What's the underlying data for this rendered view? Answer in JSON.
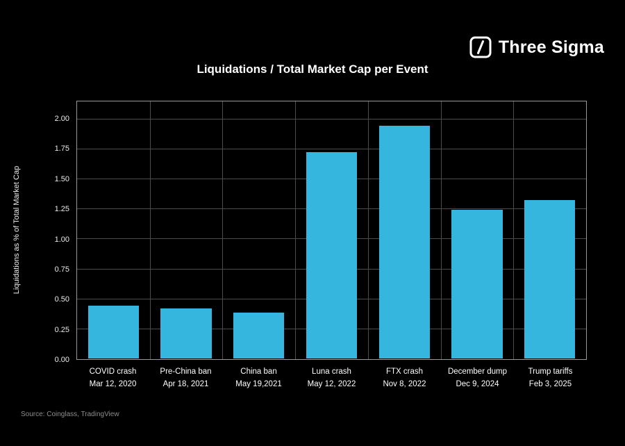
{
  "brand": {
    "name": "Three Sigma"
  },
  "source": "Source: Coinglass, TradingView",
  "chart_data": {
    "type": "bar",
    "title": "Liquidations / Total Market Cap per Event",
    "xlabel": "",
    "ylabel": "Liquidations as % of Total Market Cap",
    "categories": [
      {
        "label": "COVID crash",
        "date": "Mar 12, 2020"
      },
      {
        "label": "Pre-China ban",
        "date": "Apr 18, 2021"
      },
      {
        "label": "China ban",
        "date": "May 19,2021"
      },
      {
        "label": "Luna crash",
        "date": "May 12, 2022"
      },
      {
        "label": "FTX crash",
        "date": "Nov 8, 2022"
      },
      {
        "label": "December dump",
        "date": "Dec 9, 2024"
      },
      {
        "label": "Trump tariffs",
        "date": "Feb 3, 2025"
      }
    ],
    "values": [
      0.44,
      0.42,
      0.38,
      1.72,
      1.94,
      1.24,
      1.32
    ],
    "yticks": [
      "0.00",
      "0.25",
      "0.50",
      "0.75",
      "1.00",
      "1.25",
      "1.50",
      "1.75",
      "2.00"
    ],
    "ylim": [
      0,
      2.15
    ],
    "bar_color": "#35b6de",
    "grid": true,
    "legend": "none",
    "background": "#000000"
  }
}
